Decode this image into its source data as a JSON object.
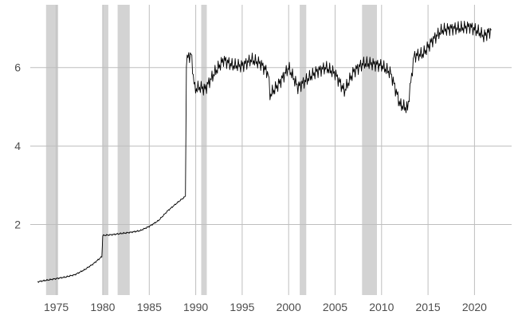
{
  "chart_data": {
    "type": "line",
    "title": "",
    "xlabel": "",
    "ylabel": "",
    "xlim": [
      1972.2,
      2024.0
    ],
    "ylim": [
      0.2,
      7.6
    ],
    "x_ticks": [
      1975,
      1980,
      1985,
      1990,
      1995,
      2000,
      2005,
      2010,
      2015,
      2020
    ],
    "y_ticks": [
      2,
      4,
      6
    ],
    "grid": true,
    "legend": "none",
    "colors": {
      "line": "#000000",
      "shading": "#d3d3d3",
      "grid": "#bebebe",
      "tick_text": "#4d4d4d",
      "background": "#ffffff"
    },
    "shaded_periods": [
      [
        1973.9,
        1975.2
      ],
      [
        1980.0,
        1980.6
      ],
      [
        1981.6,
        1982.9
      ],
      [
        1990.6,
        1991.2
      ],
      [
        2001.2,
        2001.9
      ],
      [
        2007.9,
        2009.5
      ]
    ],
    "series": [
      {
        "values": [
          [
            1973.0,
            0.54
          ],
          [
            1974.0,
            0.58
          ],
          [
            1975.0,
            0.62
          ],
          [
            1976.0,
            0.66
          ],
          [
            1977.0,
            0.72
          ],
          [
            1978.0,
            0.84
          ],
          [
            1979.0,
            1.0
          ],
          [
            1979.9,
            1.18
          ],
          [
            1980.0,
            1.72
          ],
          [
            1981.0,
            1.74
          ],
          [
            1982.0,
            1.77
          ],
          [
            1983.0,
            1.8
          ],
          [
            1984.0,
            1.84
          ],
          [
            1985.0,
            1.95
          ],
          [
            1986.0,
            2.1
          ],
          [
            1987.0,
            2.35
          ],
          [
            1988.0,
            2.55
          ],
          [
            1988.9,
            2.72
          ],
          [
            1989.0,
            6.2
          ],
          [
            1989.5,
            6.35
          ],
          [
            1989.9,
            5.45
          ],
          [
            1990.5,
            5.5
          ],
          [
            1991.0,
            5.45
          ],
          [
            1992.0,
            5.85
          ],
          [
            1993.0,
            6.2
          ],
          [
            1994.0,
            6.05
          ],
          [
            1995.0,
            6.05
          ],
          [
            1996.0,
            6.2
          ],
          [
            1997.0,
            6.1
          ],
          [
            1997.8,
            5.85
          ],
          [
            1998.0,
            5.3
          ],
          [
            1999.0,
            5.6
          ],
          [
            2000.0,
            6.0
          ],
          [
            2001.0,
            5.5
          ],
          [
            2002.0,
            5.7
          ],
          [
            2003.0,
            5.9
          ],
          [
            2004.0,
            6.0
          ],
          [
            2005.0,
            5.85
          ],
          [
            2006.0,
            5.4
          ],
          [
            2007.0,
            5.9
          ],
          [
            2008.0,
            6.1
          ],
          [
            2009.0,
            6.1
          ],
          [
            2010.0,
            6.05
          ],
          [
            2011.0,
            5.85
          ],
          [
            2012.0,
            5.05
          ],
          [
            2012.8,
            4.95
          ],
          [
            2013.5,
            6.3
          ],
          [
            2014.5,
            6.35
          ],
          [
            2015.5,
            6.7
          ],
          [
            2016.5,
            6.95
          ],
          [
            2017.5,
            7.0
          ],
          [
            2018.5,
            7.0
          ],
          [
            2019.5,
            7.05
          ],
          [
            2020.5,
            6.9
          ],
          [
            2021.0,
            6.8
          ],
          [
            2021.8,
            6.95
          ]
        ]
      }
    ]
  }
}
